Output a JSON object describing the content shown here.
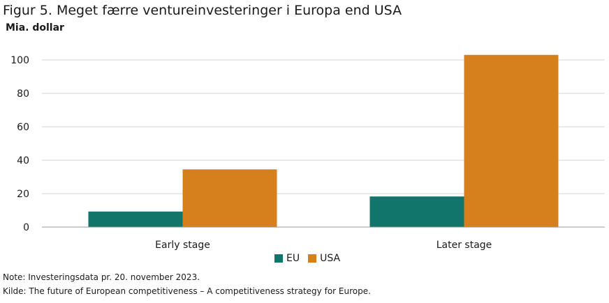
{
  "header": {
    "title": "Figur 5. Meget færre ventureinvesteringer i Europa end USA",
    "unit": "Mia. dollar"
  },
  "footer": {
    "note": "Note: Investeringsdata pr. 20. november 2023.",
    "source": "Kilde: The future of European competitiveness – A competitiveness strategy for Europe."
  },
  "chart_data": {
    "type": "bar",
    "title": "Figur 5. Meget færre ventureinvesteringer i Europa end USA",
    "ylabel": "Mia. dollar",
    "xlabel": "",
    "categories": [
      "Early stage",
      "Later stage"
    ],
    "series": [
      {
        "name": "EU",
        "values": [
          9.3,
          18.3
        ],
        "color": "#11756b"
      },
      {
        "name": "USA",
        "values": [
          34.5,
          103.0
        ],
        "color": "#d57f1d"
      }
    ],
    "ylim": [
      0,
      110
    ],
    "yticks": [
      0,
      20,
      40,
      60,
      80,
      100
    ],
    "grid": true,
    "legend_position": "bottom-center"
  }
}
